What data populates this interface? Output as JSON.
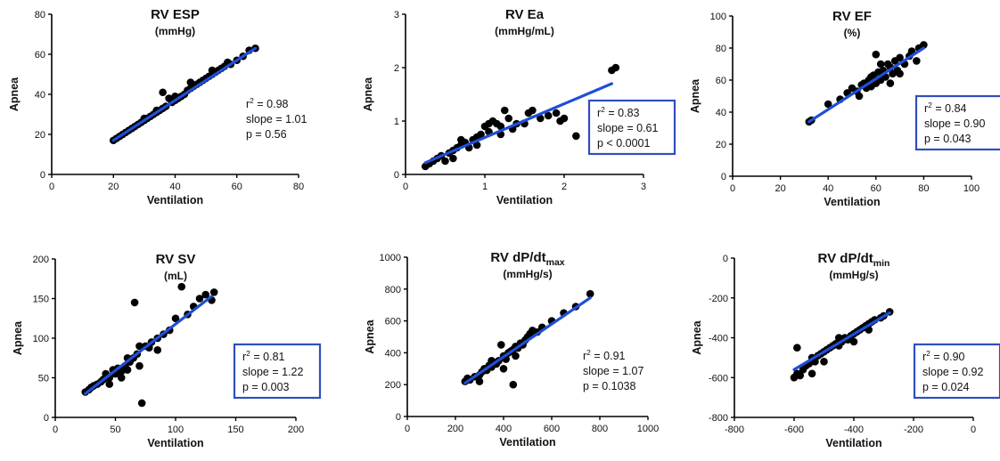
{
  "chart_data": [
    {
      "type": "scatter",
      "title": "RV ESP",
      "title_sub": "",
      "subtitle": "(mmHg)",
      "xlabel": "Ventilation",
      "ylabel": "Apnea",
      "xlim": [
        0,
        80
      ],
      "ylim": [
        0,
        80
      ],
      "xticks": [
        "0",
        "20",
        "40",
        "60",
        "80"
      ],
      "yticks": [
        "0",
        "20",
        "40",
        "60",
        "80"
      ],
      "stats": {
        "r2": "0.98",
        "slope": "slope = 1.01",
        "p": "p = 0.56",
        "boxed": false
      },
      "fit": {
        "x": [
          20,
          66
        ],
        "y": [
          17,
          63
        ]
      },
      "points": [
        [
          20,
          17
        ],
        [
          21,
          18
        ],
        [
          22,
          19
        ],
        [
          23,
          20
        ],
        [
          24,
          21
        ],
        [
          25,
          22
        ],
        [
          26,
          23
        ],
        [
          27,
          24
        ],
        [
          28,
          25
        ],
        [
          29,
          26
        ],
        [
          30,
          27
        ],
        [
          31,
          28
        ],
        [
          32,
          29
        ],
        [
          33,
          30
        ],
        [
          34,
          31
        ],
        [
          35,
          32
        ],
        [
          36,
          33
        ],
        [
          37,
          34
        ],
        [
          36,
          41
        ],
        [
          38,
          38
        ],
        [
          39,
          36
        ],
        [
          40,
          37
        ],
        [
          41,
          38
        ],
        [
          42,
          39
        ],
        [
          43,
          40
        ],
        [
          44,
          42
        ],
        [
          45,
          43
        ],
        [
          46,
          44
        ],
        [
          47,
          45
        ],
        [
          48,
          46
        ],
        [
          49,
          47
        ],
        [
          50,
          48
        ],
        [
          51,
          49
        ],
        [
          52,
          50
        ],
        [
          53,
          51
        ],
        [
          54,
          52
        ],
        [
          55,
          53
        ],
        [
          56,
          54
        ],
        [
          58,
          55
        ],
        [
          60,
          57
        ],
        [
          62,
          59
        ],
        [
          64,
          62
        ],
        [
          66,
          63
        ],
        [
          30,
          28
        ],
        [
          34,
          32
        ],
        [
          40,
          39
        ],
        [
          45,
          46
        ],
        [
          52,
          52
        ],
        [
          57,
          56
        ]
      ]
    },
    {
      "type": "scatter",
      "title": "RV Ea",
      "title_sub": "",
      "subtitle": "(mmHg/mL)",
      "xlabel": "Ventilation",
      "ylabel": "Apnea",
      "xlim": [
        0,
        3
      ],
      "ylim": [
        0,
        3
      ],
      "xticks": [
        "0",
        "1",
        "2",
        "3"
      ],
      "yticks": [
        "0",
        "1",
        "2",
        "3"
      ],
      "stats": {
        "r2": "0.83",
        "slope": "slope = 0.61",
        "p": "p < 0.0001",
        "boxed": true
      },
      "fit": {
        "x": [
          0.25,
          2.6
        ],
        "y": [
          0.22,
          1.7
        ]
      },
      "points": [
        [
          0.25,
          0.15
        ],
        [
          0.3,
          0.2
        ],
        [
          0.35,
          0.25
        ],
        [
          0.4,
          0.3
        ],
        [
          0.45,
          0.35
        ],
        [
          0.5,
          0.25
        ],
        [
          0.55,
          0.4
        ],
        [
          0.6,
          0.45
        ],
        [
          0.65,
          0.5
        ],
        [
          0.7,
          0.55
        ],
        [
          0.75,
          0.6
        ],
        [
          0.8,
          0.5
        ],
        [
          0.85,
          0.65
        ],
        [
          0.9,
          0.7
        ],
        [
          0.95,
          0.75
        ],
        [
          1.0,
          0.9
        ],
        [
          1.05,
          0.95
        ],
        [
          1.1,
          1.0
        ],
        [
          1.15,
          0.95
        ],
        [
          1.2,
          0.9
        ],
        [
          1.25,
          1.2
        ],
        [
          1.3,
          1.05
        ],
        [
          1.35,
          0.85
        ],
        [
          1.4,
          0.95
        ],
        [
          1.5,
          0.95
        ],
        [
          1.55,
          1.15
        ],
        [
          1.6,
          1.2
        ],
        [
          1.7,
          1.05
        ],
        [
          1.8,
          1.1
        ],
        [
          1.9,
          1.15
        ],
        [
          1.95,
          1.0
        ],
        [
          2.0,
          1.05
        ],
        [
          2.15,
          0.72
        ],
        [
          2.6,
          1.95
        ],
        [
          2.65,
          2.0
        ],
        [
          0.7,
          0.65
        ],
        [
          0.9,
          0.55
        ],
        [
          1.05,
          0.8
        ],
        [
          0.6,
          0.3
        ],
        [
          1.2,
          0.75
        ]
      ]
    },
    {
      "type": "scatter",
      "title": "RV EF",
      "title_sub": "",
      "subtitle": "(%)",
      "xlabel": "Ventilation",
      "ylabel": "Apnea",
      "xlim": [
        0,
        100
      ],
      "ylim": [
        0,
        100
      ],
      "xticks": [
        "0",
        "20",
        "40",
        "60",
        "80",
        "100"
      ],
      "yticks": [
        "0",
        "20",
        "40",
        "60",
        "80",
        "100"
      ],
      "stats": {
        "r2": "0.84",
        "slope": "slope =  0.90",
        "p": "p = 0.043",
        "boxed": true
      },
      "fit": {
        "x": [
          32,
          80
        ],
        "y": [
          34,
          80
        ]
      },
      "points": [
        [
          32,
          34
        ],
        [
          33,
          35
        ],
        [
          40,
          45
        ],
        [
          45,
          48
        ],
        [
          48,
          52
        ],
        [
          50,
          55
        ],
        [
          52,
          53
        ],
        [
          54,
          57
        ],
        [
          55,
          58
        ],
        [
          56,
          55
        ],
        [
          57,
          60
        ],
        [
          58,
          62
        ],
        [
          59,
          63
        ],
        [
          60,
          58
        ],
        [
          60,
          76
        ],
        [
          61,
          65
        ],
        [
          62,
          60
        ],
        [
          63,
          66
        ],
        [
          64,
          62
        ],
        [
          65,
          70
        ],
        [
          66,
          68
        ],
        [
          67,
          64
        ],
        [
          68,
          72
        ],
        [
          69,
          66
        ],
        [
          70,
          74
        ],
        [
          72,
          70
        ],
        [
          74,
          75
        ],
        [
          75,
          78
        ],
        [
          77,
          72
        ],
        [
          78,
          80
        ],
        [
          80,
          82
        ],
        [
          53,
          50
        ],
        [
          58,
          56
        ],
        [
          62,
          70
        ],
        [
          66,
          58
        ],
        [
          70,
          64
        ]
      ]
    },
    {
      "type": "scatter",
      "title": "RV SV",
      "title_sub": "",
      "subtitle": "(mL)",
      "xlabel": "Ventilation",
      "ylabel": "Apnea",
      "xlim": [
        0,
        200
      ],
      "ylim": [
        0,
        200
      ],
      "xticks": [
        "0",
        "50",
        "100",
        "150",
        "200"
      ],
      "yticks": [
        "0",
        "50",
        "100",
        "150",
        "200"
      ],
      "stats": {
        "r2": "0.81",
        "slope": "slope = 1.22",
        "p": "p = 0.003",
        "boxed": true
      },
      "fit": {
        "x": [
          25,
          130
        ],
        "y": [
          30,
          153
        ]
      },
      "points": [
        [
          25,
          32
        ],
        [
          28,
          35
        ],
        [
          30,
          38
        ],
        [
          32,
          40
        ],
        [
          35,
          42
        ],
        [
          38,
          45
        ],
        [
          40,
          48
        ],
        [
          42,
          55
        ],
        [
          45,
          50
        ],
        [
          48,
          60
        ],
        [
          50,
          55
        ],
        [
          52,
          62
        ],
        [
          55,
          58
        ],
        [
          58,
          65
        ],
        [
          60,
          60
        ],
        [
          62,
          70
        ],
        [
          65,
          75
        ],
        [
          66,
          145
        ],
        [
          68,
          80
        ],
        [
          70,
          65
        ],
        [
          72,
          18
        ],
        [
          75,
          90
        ],
        [
          78,
          88
        ],
        [
          80,
          95
        ],
        [
          85,
          85
        ],
        [
          90,
          105
        ],
        [
          95,
          110
        ],
        [
          100,
          125
        ],
        [
          105,
          165
        ],
        [
          110,
          130
        ],
        [
          115,
          140
        ],
        [
          120,
          150
        ],
        [
          125,
          155
        ],
        [
          130,
          148
        ],
        [
          132,
          158
        ],
        [
          45,
          42
        ],
        [
          55,
          50
        ],
        [
          60,
          75
        ],
        [
          70,
          90
        ],
        [
          85,
          100
        ]
      ]
    },
    {
      "type": "scatter",
      "title": "RV dP/dt",
      "title_sub": "max",
      "subtitle": "(mmHg/s)",
      "xlabel": "Ventilation",
      "ylabel": "Apnea",
      "xlim": [
        0,
        1000
      ],
      "ylim": [
        0,
        1000
      ],
      "xticks": [
        "0",
        "200",
        "400",
        "600",
        "800",
        "1000"
      ],
      "yticks": [
        "0",
        "200",
        "400",
        "600",
        "800",
        "1000"
      ],
      "stats": {
        "r2": "0.91",
        "slope": "slope = 1.07",
        "p": "p = 0.1038",
        "boxed": false
      },
      "fit": {
        "x": [
          240,
          760
        ],
        "y": [
          210,
          745
        ]
      },
      "points": [
        [
          240,
          220
        ],
        [
          250,
          240
        ],
        [
          260,
          230
        ],
        [
          280,
          250
        ],
        [
          300,
          260
        ],
        [
          310,
          280
        ],
        [
          320,
          300
        ],
        [
          330,
          290
        ],
        [
          340,
          320
        ],
        [
          350,
          310
        ],
        [
          360,
          340
        ],
        [
          370,
          330
        ],
        [
          380,
          350
        ],
        [
          390,
          450
        ],
        [
          400,
          380
        ],
        [
          410,
          360
        ],
        [
          420,
          400
        ],
        [
          430,
          410
        ],
        [
          440,
          200
        ],
        [
          440,
          420
        ],
        [
          450,
          440
        ],
        [
          460,
          430
        ],
        [
          470,
          460
        ],
        [
          480,
          450
        ],
        [
          490,
          480
        ],
        [
          500,
          500
        ],
        [
          510,
          520
        ],
        [
          520,
          540
        ],
        [
          540,
          530
        ],
        [
          560,
          560
        ],
        [
          600,
          600
        ],
        [
          650,
          650
        ],
        [
          700,
          690
        ],
        [
          760,
          770
        ],
        [
          300,
          220
        ],
        [
          350,
          350
        ],
        [
          400,
          300
        ],
        [
          450,
          380
        ]
      ]
    },
    {
      "type": "scatter",
      "title": "RV dP/dt",
      "title_sub": "min",
      "subtitle": "(mmHg/s)",
      "xlabel": "Ventilation",
      "ylabel": "Apnea",
      "xlim": [
        -800,
        0
      ],
      "ylim": [
        -800,
        0
      ],
      "xticks": [
        "-800",
        "-600",
        "-400",
        "-200",
        "0"
      ],
      "yticks": [
        "-800",
        "-600",
        "-400",
        "-200",
        "0"
      ],
      "stats": {
        "r2": "0.90",
        "slope": "slope = 0.92",
        "p": "p = 0.024",
        "boxed": true
      },
      "fit": {
        "x": [
          -600,
          -280
        ],
        "y": [
          -560,
          -275
        ]
      },
      "points": [
        [
          -600,
          -600
        ],
        [
          -590,
          -580
        ],
        [
          -590,
          -450
        ],
        [
          -580,
          -590
        ],
        [
          -570,
          -560
        ],
        [
          -560,
          -540
        ],
        [
          -550,
          -530
        ],
        [
          -540,
          -500
        ],
        [
          -530,
          -520
        ],
        [
          -520,
          -490
        ],
        [
          -510,
          -480
        ],
        [
          -500,
          -470
        ],
        [
          -490,
          -460
        ],
        [
          -480,
          -450
        ],
        [
          -470,
          -440
        ],
        [
          -460,
          -430
        ],
        [
          -450,
          -440
        ],
        [
          -440,
          -420
        ],
        [
          -430,
          -400
        ],
        [
          -420,
          -410
        ],
        [
          -410,
          -390
        ],
        [
          -400,
          -380
        ],
        [
          -390,
          -370
        ],
        [
          -380,
          -360
        ],
        [
          -370,
          -350
        ],
        [
          -360,
          -340
        ],
        [
          -350,
          -330
        ],
        [
          -340,
          -320
        ],
        [
          -330,
          -310
        ],
        [
          -310,
          -300
        ],
        [
          -300,
          -290
        ],
        [
          -280,
          -270
        ],
        [
          -540,
          -580
        ],
        [
          -500,
          -520
        ],
        [
          -450,
          -400
        ],
        [
          -400,
          -420
        ],
        [
          -350,
          -360
        ]
      ]
    }
  ],
  "colors": {
    "points": "#000000",
    "fit": "#1f4fd6",
    "box": "#2f4fbf"
  }
}
